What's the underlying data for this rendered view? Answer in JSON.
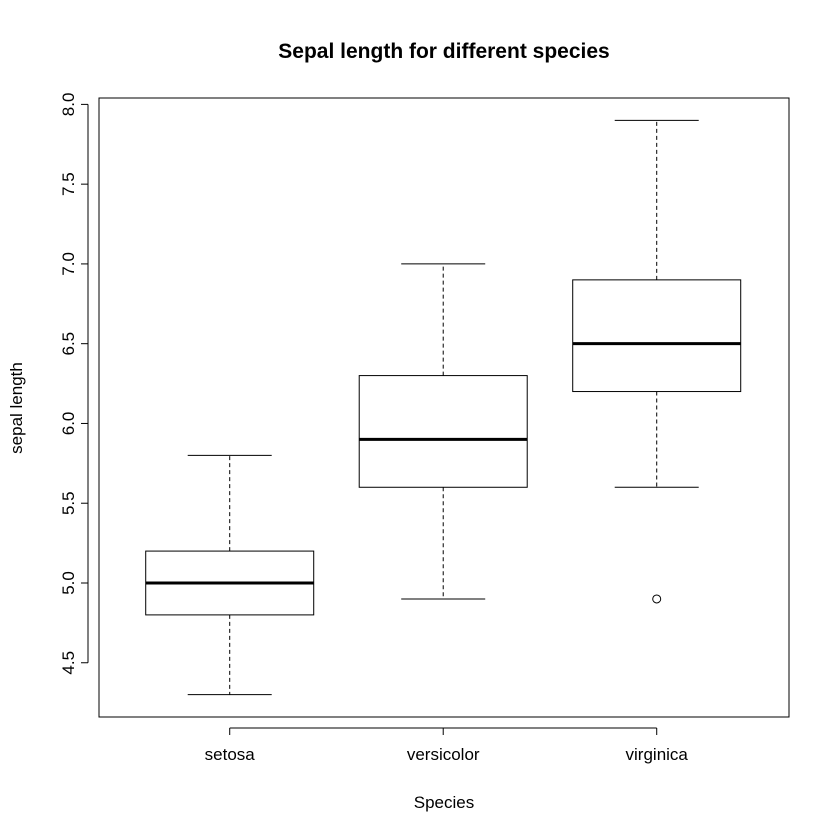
{
  "chart_data": {
    "type": "boxplot",
    "title": "Sepal length for different species",
    "xlabel": "Species",
    "ylabel": "sepal length",
    "ylim": [
      4.16,
      8.04
    ],
    "yticks": [
      4.5,
      5.0,
      5.5,
      6.0,
      6.5,
      7.0,
      7.5,
      8.0
    ],
    "ytick_labels": [
      "4.5",
      "5.0",
      "5.5",
      "6.0",
      "6.5",
      "7.0",
      "7.5",
      "8.0"
    ],
    "categories": [
      "setosa",
      "versicolor",
      "virginica"
    ],
    "boxes": [
      {
        "category": "setosa",
        "whisker_low": 4.3,
        "q1": 4.8,
        "median": 5.0,
        "q3": 5.2,
        "whisker_high": 5.8,
        "outliers": []
      },
      {
        "category": "versicolor",
        "whisker_low": 4.9,
        "q1": 5.6,
        "median": 5.9,
        "q3": 6.3,
        "whisker_high": 7.0,
        "outliers": []
      },
      {
        "category": "virginica",
        "whisker_low": 5.6,
        "q1": 6.2,
        "median": 6.5,
        "q3": 6.9,
        "whisker_high": 7.9,
        "outliers": [
          4.9
        ]
      }
    ],
    "grid": false,
    "legend": "none"
  }
}
